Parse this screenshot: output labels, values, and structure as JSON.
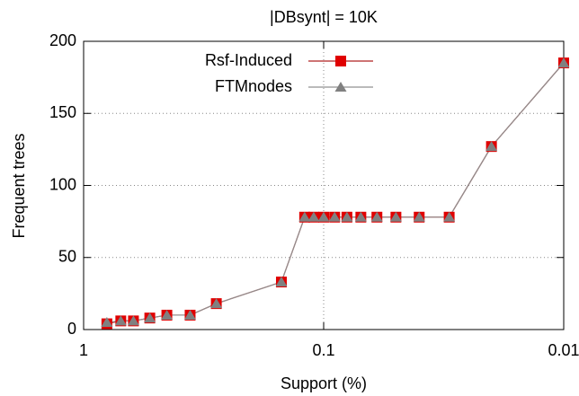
{
  "chart_data": {
    "type": "line",
    "title": "|DBsynt| = 10K",
    "x_label": "Support (%)",
    "y_label": "Frequent trees",
    "x": [
      0.8,
      0.7,
      0.62,
      0.53,
      0.45,
      0.36,
      0.28,
      0.15,
      0.12,
      0.11,
      0.1,
      0.09,
      0.08,
      0.07,
      0.06,
      0.05,
      0.04,
      0.03,
      0.02,
      0.01
    ],
    "series": [
      {
        "name": "Rsf-Induced",
        "color": "#e00000",
        "line_color": "#b02020",
        "marker": "square",
        "values": [
          4,
          6,
          6,
          8,
          10,
          10,
          18,
          33,
          78,
          78,
          78,
          78,
          78,
          78,
          78,
          78,
          78,
          78,
          127,
          185
        ]
      },
      {
        "name": "FTMnodes",
        "color": "#808080",
        "line_color": "#909090",
        "marker": "triangle",
        "values": [
          5,
          6,
          6,
          8,
          10,
          10,
          18,
          33,
          78,
          78,
          78,
          78,
          78,
          78,
          78,
          78,
          78,
          78,
          127,
          185
        ]
      }
    ],
    "xlim": [
      1,
      0.01
    ],
    "xticks": [
      1,
      0.1,
      0.01
    ],
    "xlog": true,
    "ylim": [
      0,
      200
    ],
    "yticks": [
      0,
      50,
      100,
      150,
      200
    ],
    "grid": true,
    "legend": "top-center"
  }
}
